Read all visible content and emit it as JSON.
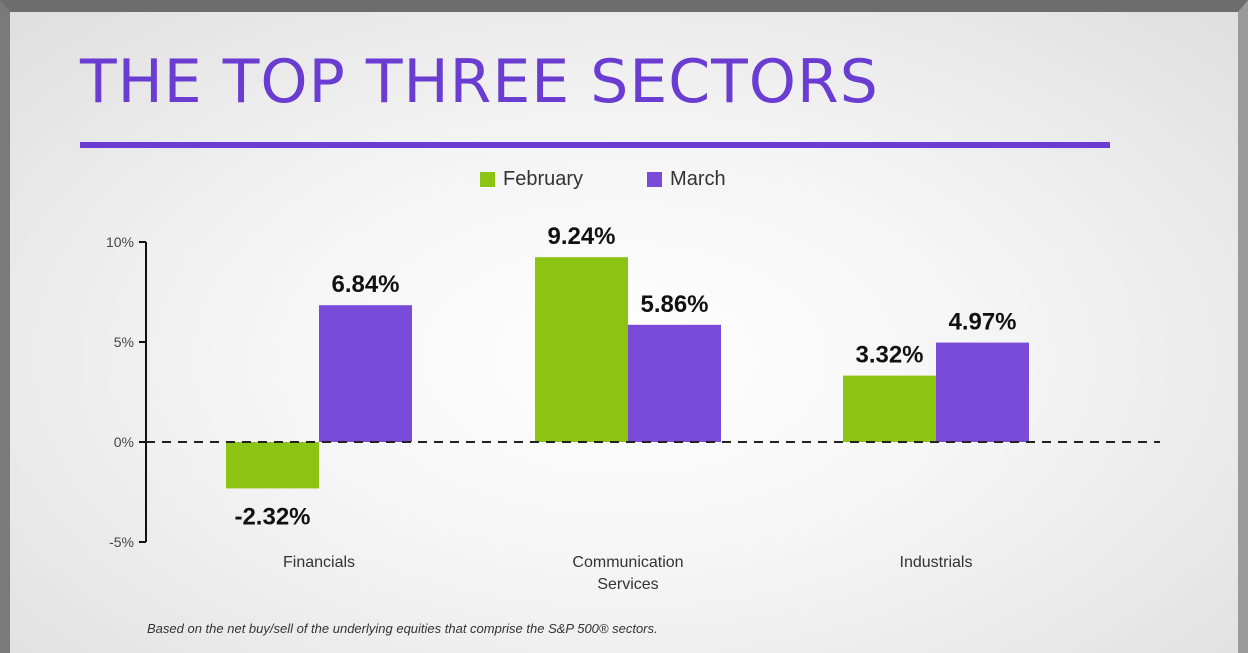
{
  "colors": {
    "february": "#8cc414",
    "march": "#7a4ad8",
    "title": "#6a3cd2"
  },
  "footnote": "Based on the net buy/sell of the underlying equities that comprise the S&P 500® sectors.",
  "chart_data": {
    "type": "bar",
    "title": "THE TOP THREE SECTORS",
    "categories": [
      [
        "Financials"
      ],
      [
        "Communication",
        "Services"
      ],
      [
        "Industrials"
      ]
    ],
    "series": [
      {
        "name": "February",
        "color": "#8cc414",
        "values": [
          -2.32,
          9.24,
          3.32
        ],
        "labels": [
          "-2.32%",
          "9.24%",
          "3.32%"
        ]
      },
      {
        "name": "March",
        "color": "#7a4ad8",
        "values": [
          6.84,
          5.86,
          4.97
        ],
        "labels": [
          "6.84%",
          "5.86%",
          "4.97%"
        ]
      }
    ],
    "yticks": [
      10,
      5,
      0,
      -5
    ],
    "ytick_labels": [
      "10%",
      "5%",
      "0%",
      "-5%"
    ],
    "ylim": [
      -5,
      10
    ],
    "zero_line": "dashed",
    "legend": "top-center",
    "grid": false
  }
}
